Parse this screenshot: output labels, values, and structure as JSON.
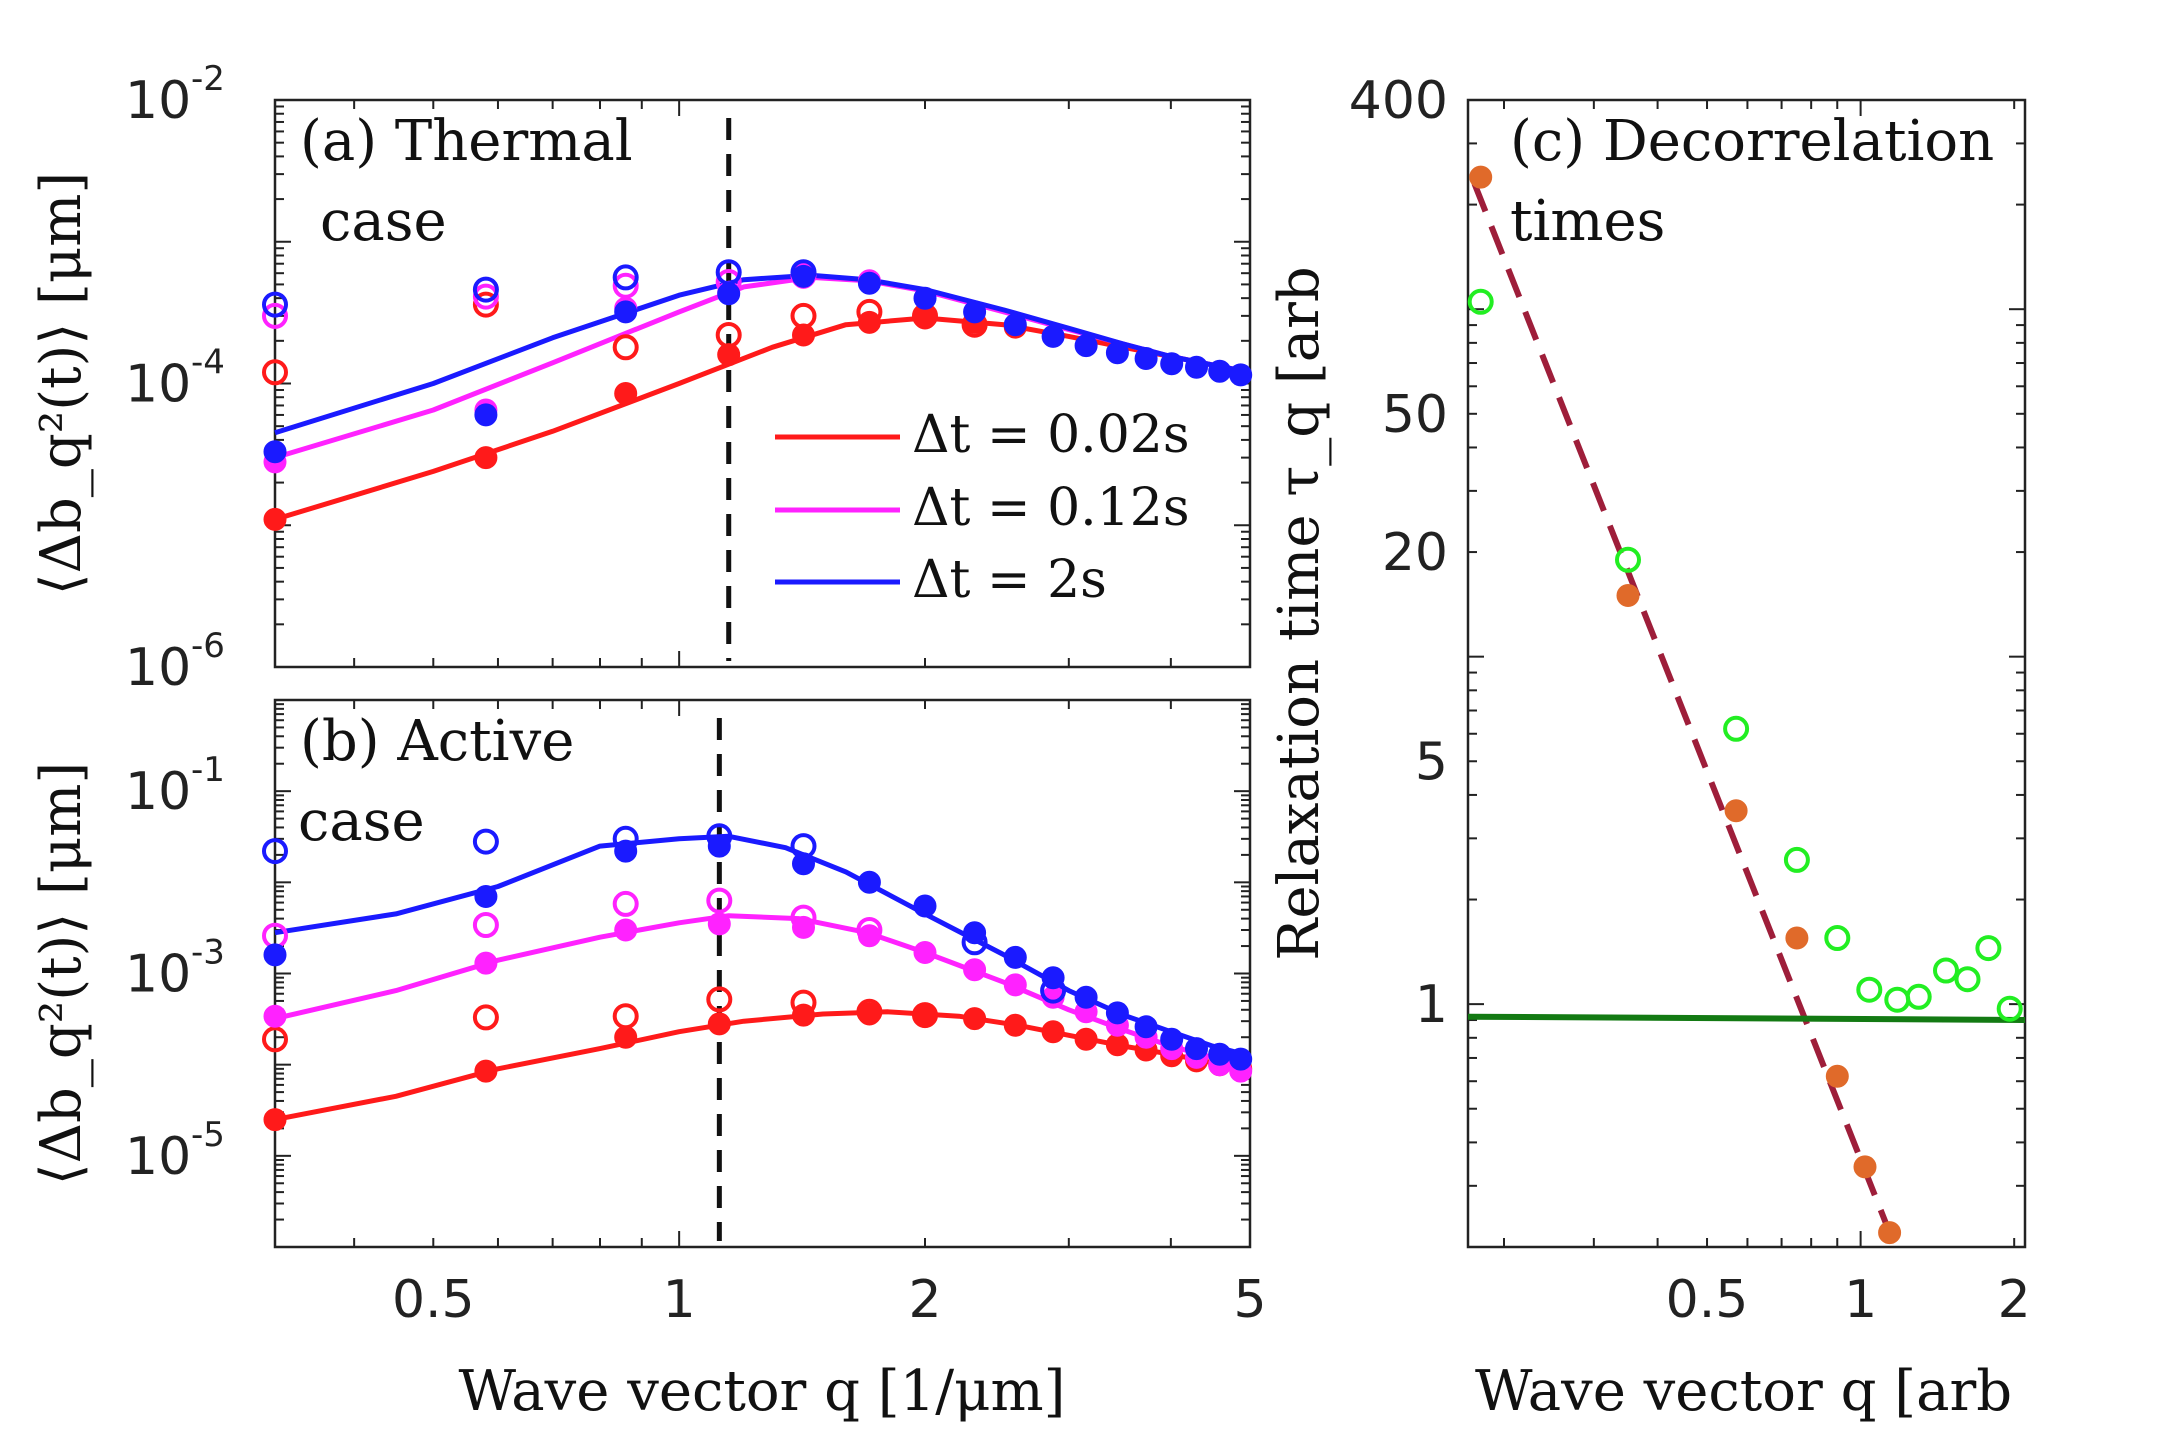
{
  "chart_data": [
    {
      "panel": "a",
      "type": "line+scatter",
      "title": "(a) Thermal",
      "title_line2": "case",
      "xscale": "log",
      "yscale": "log",
      "xlim": [
        0.32,
        5
      ],
      "ylim": [
        1e-06,
        0.01
      ],
      "xticks": [
        0.5,
        1,
        2,
        5
      ],
      "xticklabels": [
        "0.5",
        "1",
        "2",
        "5"
      ],
      "yticks": [
        {
          "base": "10",
          "exp": "-2",
          "value": 0.01
        },
        {
          "base": "10",
          "exp": "-4",
          "value": 0.0001
        },
        {
          "base": "10",
          "exp": "-6",
          "value": 1e-06
        }
      ],
      "ylabel": "⟨Δb_q²(t)⟩ [μm]",
      "vline_x": 1.15,
      "series": [
        {
          "name": "Δt = 0.02s",
          "color": "#ff1a1a",
          "line": {
            "x": [
              0.32,
              0.5,
              0.7,
              1,
              1.3,
              1.6,
              2,
              2.5,
              3,
              3.5,
              4,
              4.5,
              5
            ],
            "y": [
              1.1e-05,
              2.4e-05,
              4.6e-05,
              0.0001,
              0.00018,
              0.00026,
              0.00029,
              0.00026,
              0.000215,
              0.00018,
              0.000155,
              0.000135,
              0.00012
            ]
          },
          "filled": {
            "x": [
              0.32,
              0.58,
              0.86,
              1.15,
              1.42,
              1.71,
              2.0,
              2.3,
              2.58
            ],
            "y": [
              1.1e-05,
              3e-05,
              8.5e-05,
              0.00016,
              0.00022,
              0.00027,
              0.00029,
              0.00027,
              0.00025
            ]
          },
          "open": {
            "x": [
              0.32,
              0.58,
              0.86,
              1.15,
              1.42,
              1.71,
              2.0,
              2.3
            ],
            "y": [
              0.00012,
              0.00036,
              0.00018,
              0.00022,
              0.0003,
              0.00032,
              0.0003,
              0.00026
            ]
          }
        },
        {
          "name": "Δt = 0.12s",
          "color": "#ff22ff",
          "line": {
            "x": [
              0.32,
              0.5,
              0.7,
              1,
              1.2,
              1.45,
              1.7,
              2,
              2.5,
              3,
              3.5,
              4,
              4.5,
              5
            ],
            "y": [
              3e-05,
              6.5e-05,
              0.00014,
              0.00032,
              0.00048,
              0.00056,
              0.00053,
              0.00045,
              0.00032,
              0.00024,
              0.00019,
              0.000155,
              0.000135,
              0.00012
            ]
          },
          "filled": {
            "x": [
              0.32,
              0.58,
              0.86,
              1.15,
              1.42,
              1.71
            ],
            "y": [
              2.8e-05,
              6.5e-05,
              0.00034,
              0.00044,
              0.00056,
              0.00053
            ]
          },
          "open": {
            "x": [
              0.32,
              0.58,
              0.86,
              1.15,
              1.42
            ],
            "y": [
              0.0003,
              0.00041,
              0.00049,
              0.00052,
              0.00058
            ]
          }
        },
        {
          "name": "Δt = 2s",
          "color": "#1a1aff",
          "line": {
            "x": [
              0.32,
              0.5,
              0.7,
              1,
              1.2,
              1.45,
              1.7,
              2,
              2.5,
              3,
              3.5,
              4,
              4.5,
              5
            ],
            "y": [
              4.5e-05,
              0.0001,
              0.00021,
              0.00042,
              0.00054,
              0.00058,
              0.00054,
              0.00046,
              0.00033,
              0.000245,
              0.00019,
              0.000155,
              0.000135,
              0.00012
            ]
          },
          "filled": {
            "x": [
              0.32,
              0.58,
              0.86,
              1.15,
              1.42,
              1.71,
              2.0,
              2.3,
              2.58,
              2.87,
              3.15,
              3.44,
              3.73,
              4.01,
              4.3,
              4.59,
              4.87
            ],
            "y": [
              3.3e-05,
              6e-05,
              0.00032,
              0.00043,
              0.00057,
              0.00051,
              0.0004,
              0.00032,
              0.00026,
              0.000215,
              0.000185,
              0.000165,
              0.00015,
              0.000138,
              0.00013,
              0.000122,
              0.000115
            ]
          },
          "open": {
            "x": [
              0.32,
              0.58,
              0.86,
              1.15,
              1.42
            ],
            "y": [
              0.00036,
              0.00046,
              0.00056,
              0.00061,
              0.00061
            ]
          }
        }
      ],
      "legend": [
        "Δt = 0.02s",
        "Δt = 0.12s",
        "Δt = 2s"
      ]
    },
    {
      "panel": "b",
      "type": "line+scatter",
      "title": "(b) Active",
      "title_line2": "case",
      "xscale": "log",
      "yscale": "log",
      "xlim": [
        0.32,
        5
      ],
      "ylim": [
        1e-06,
        1
      ],
      "xticks": [
        0.5,
        1,
        2,
        5
      ],
      "xticklabels": [
        "0.5",
        "1",
        "2",
        "5"
      ],
      "yticks": [
        {
          "base": "10",
          "exp": "-1",
          "value": 0.1
        },
        {
          "base": "10",
          "exp": "-3",
          "value": 0.001
        },
        {
          "base": "10",
          "exp": "-5",
          "value": 1e-05
        }
      ],
      "xlabel": "Wave vector q [1/μm]",
      "ylabel": "⟨Δb_q²(t)⟩ [μm]",
      "vline_x": 1.12,
      "series": [
        {
          "name": "Δt = 0.02s",
          "color": "#ff1a1a",
          "line": {
            "x": [
              0.32,
              0.45,
              0.6,
              0.8,
              1,
              1.2,
              1.5,
              1.8,
              2.2,
              2.6,
              3,
              3.5,
              4,
              4.5,
              5
            ],
            "y": [
              2.5e-05,
              4.5e-05,
              9e-05,
              0.00015,
              0.00023,
              0.0003,
              0.00036,
              0.00038,
              0.00034,
              0.00027,
              0.00021,
              0.00016,
              0.00013,
              0.000105,
              8.5e-05
            ]
          },
          "filled": {
            "x": [
              0.32,
              0.58,
              0.86,
              1.12,
              1.42,
              1.71,
              2.0,
              2.3,
              2.58,
              2.87,
              3.15,
              3.44,
              3.73,
              4.01,
              4.3,
              4.59,
              4.87
            ],
            "y": [
              2.5e-05,
              8.5e-05,
              0.0002,
              0.00028,
              0.00035,
              0.00036,
              0.00035,
              0.00032,
              0.00027,
              0.00023,
              0.00019,
              0.000165,
              0.000145,
              0.000125,
              0.00011,
              0.0001,
              9e-05
            ]
          },
          "open": {
            "x": [
              0.32,
              0.58,
              0.86,
              1.12,
              1.42,
              1.71,
              2.0
            ],
            "y": [
              0.00019,
              0.00033,
              0.00034,
              0.00052,
              0.00048,
              0.00038,
              0.00035
            ]
          }
        },
        {
          "name": "Δt = 0.12s",
          "color": "#ff22ff",
          "line": {
            "x": [
              0.32,
              0.45,
              0.6,
              0.8,
              1,
              1.15,
              1.4,
              1.7,
              2,
              2.5,
              3,
              3.5,
              4,
              4.5,
              5
            ],
            "y": [
              0.00032,
              0.00065,
              0.0014,
              0.0025,
              0.0036,
              0.0043,
              0.004,
              0.0028,
              0.0017,
              0.0008,
              0.0004,
              0.00024,
              0.00016,
              0.00012,
              9.5e-05
            ]
          },
          "filled": {
            "x": [
              0.32,
              0.58,
              0.86,
              1.12,
              1.42,
              1.71,
              2.0,
              2.3,
              2.58,
              2.87,
              3.15,
              3.44,
              3.73,
              4.01,
              4.3,
              4.59,
              4.87
            ],
            "y": [
              0.00034,
              0.0013,
              0.003,
              0.0035,
              0.0032,
              0.0026,
              0.0017,
              0.0011,
              0.00075,
              0.00055,
              0.00038,
              0.00027,
              0.0002,
              0.00015,
              0.00012,
              0.0001,
              8.5e-05
            ]
          },
          "open": {
            "x": [
              0.32,
              0.58,
              0.86,
              1.12,
              1.42,
              1.71
            ],
            "y": [
              0.0026,
              0.0034,
              0.0058,
              0.0063,
              0.0041,
              0.003
            ]
          }
        },
        {
          "name": "Δt = 2s",
          "color": "#1a1aff",
          "line": {
            "x": [
              0.32,
              0.45,
              0.6,
              0.8,
              1,
              1.15,
              1.35,
              1.6,
              2,
              2.5,
              3,
              3.5,
              4,
              4.5,
              5
            ],
            "y": [
              0.0028,
              0.0045,
              0.009,
              0.025,
              0.03,
              0.032,
              0.024,
              0.013,
              0.0045,
              0.0016,
              0.00065,
              0.00035,
              0.00023,
              0.00016,
              0.000125
            ]
          },
          "filled": {
            "x": [
              0.32,
              0.58,
              0.86,
              1.12,
              1.42,
              1.71,
              2.0,
              2.3,
              2.58,
              2.87,
              3.15,
              3.44,
              3.73,
              4.01,
              4.3,
              4.59,
              4.87
            ],
            "y": [
              0.0016,
              0.007,
              0.022,
              0.025,
              0.016,
              0.01,
              0.0055,
              0.0028,
              0.0015,
              0.0009,
              0.00055,
              0.00037,
              0.00026,
              0.00019,
              0.00015,
              0.00013,
              0.000115
            ]
          },
          "open": {
            "x": [
              0.32,
              0.58,
              0.86,
              1.12,
              1.42,
              2.3,
              2.87
            ],
            "y": [
              0.022,
              0.028,
              0.03,
              0.032,
              0.025,
              0.0022,
              0.00065
            ]
          }
        }
      ]
    },
    {
      "panel": "c",
      "type": "scatter+line",
      "title": "(c) Decorrelation",
      "title_line2": "times",
      "xscale": "log",
      "yscale": "log",
      "xlim": [
        0.17,
        2.1
      ],
      "ylim": [
        0.2,
        400
      ],
      "xticks": [
        0.5,
        1,
        2
      ],
      "xticklabels": [
        "0.5",
        "1",
        "2"
      ],
      "yticks": [
        400,
        50,
        20,
        5,
        1
      ],
      "yticklabels": [
        "400",
        "50",
        "20",
        "5",
        "1"
      ],
      "xlabel": "Wave vector q [arb",
      "ylabel": "Relaxation time τ_q [arb",
      "series": [
        {
          "name": "filled",
          "color": "#e06a2a",
          "marker": "filled",
          "x": [
            0.18,
            0.35,
            0.57,
            0.75,
            0.9,
            1.02,
            1.14
          ],
          "y": [
            240,
            15,
            3.6,
            1.55,
            0.62,
            0.34,
            0.22
          ]
        },
        {
          "name": "open",
          "color": "#22ee22",
          "marker": "open",
          "x": [
            0.18,
            0.35,
            0.57,
            0.75,
            0.9,
            1.04,
            1.18,
            1.3,
            1.47,
            1.62,
            1.78,
            1.96
          ],
          "y": [
            105,
            19,
            6.2,
            2.6,
            1.55,
            1.1,
            1.03,
            1.05,
            1.25,
            1.18,
            1.45,
            0.97
          ]
        },
        {
          "name": "dashed fit",
          "color": "#9e1e3a",
          "style": "dashed",
          "x": [
            0.175,
            1.14
          ],
          "y": [
            230,
            0.22
          ]
        },
        {
          "name": "horizontal",
          "color": "#137a13",
          "style": "solid",
          "x": [
            0.17,
            2.1
          ],
          "y": [
            0.92,
            0.9
          ]
        }
      ]
    }
  ]
}
